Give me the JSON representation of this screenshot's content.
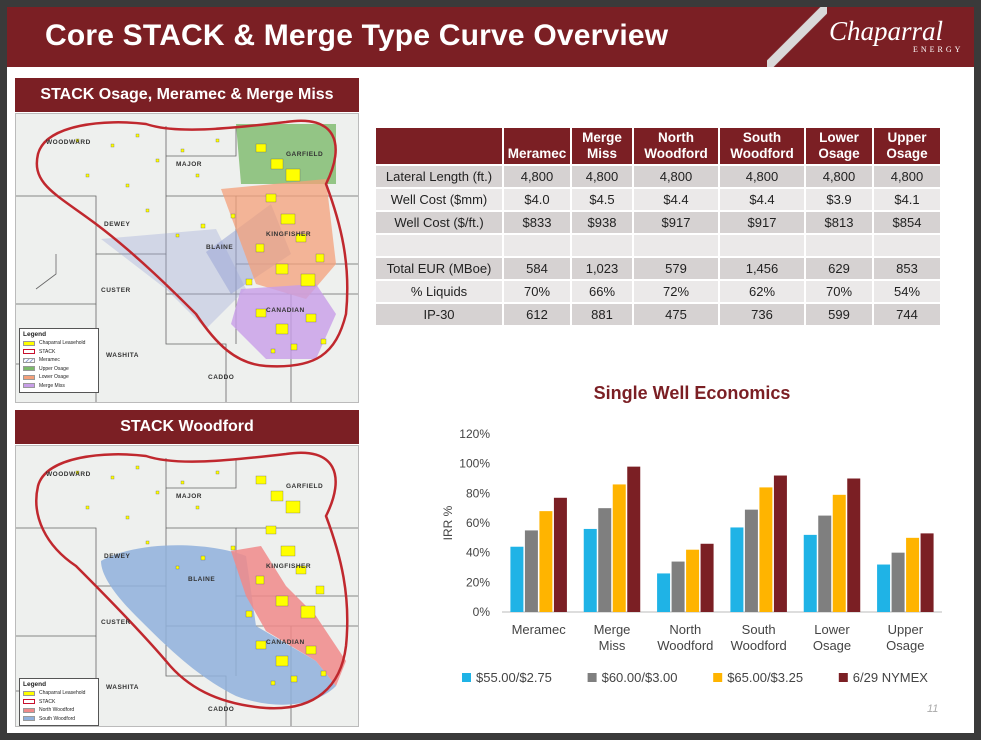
{
  "header": {
    "title": "Core STACK & Merge Type Curve Overview",
    "logo_main": "Chaparral",
    "logo_sub": "ENERGY"
  },
  "map_top": {
    "title": "STACK Osage, Meramec & Merge Miss",
    "counties": [
      "WOODWARD",
      "MAJOR",
      "GARFIELD",
      "DEWEY",
      "BLAINE",
      "KINGFISHER",
      "CUSTER",
      "CANADIAN",
      "WASHITA",
      "CADDO"
    ],
    "legend": {
      "title": "Legend",
      "items": [
        {
          "label": "Chaparral Leasehold",
          "color": "#ffff00"
        },
        {
          "label": "STACK",
          "color": "#c8102e"
        },
        {
          "label": "Meramec",
          "color": "#9aa6d6"
        },
        {
          "label": "Upper Osage",
          "color": "#7cba6a"
        },
        {
          "label": "Lower Osage",
          "color": "#f4a07a"
        },
        {
          "label": "Merge Miss",
          "color": "#c89ee8"
        }
      ]
    }
  },
  "map_bottom": {
    "title": "STACK Woodford",
    "counties": [
      "WOODWARD",
      "MAJOR",
      "GARFIELD",
      "DEWEY",
      "BLAINE",
      "KINGFISHER",
      "CUSTER",
      "CANADIAN",
      "WASHITA",
      "CADDO"
    ],
    "legend": {
      "title": "Legend",
      "items": [
        {
          "label": "Chaparral Leasehold",
          "color": "#ffff00"
        },
        {
          "label": "STACK",
          "color": "#c8102e"
        },
        {
          "label": "North Woodford",
          "color": "#f08a8a"
        },
        {
          "label": "South Woodford",
          "color": "#8fb0dc"
        }
      ]
    }
  },
  "table": {
    "columns": [
      "",
      "Meramec",
      "Merge Miss",
      "North Woodford",
      "South Woodford",
      "Lower Osage",
      "Upper Osage"
    ],
    "rows": [
      {
        "label": "Lateral Length (ft.)",
        "values": [
          "4,800",
          "4,800",
          "4,800",
          "4,800",
          "4,800",
          "4,800"
        ]
      },
      {
        "label": "Well Cost ($mm)",
        "values": [
          "$4.0",
          "$4.5",
          "$4.4",
          "$4.4",
          "$3.9",
          "$4.1"
        ]
      },
      {
        "label": "Well Cost ($/ft.)",
        "values": [
          "$833",
          "$938",
          "$917",
          "$917",
          "$813",
          "$854"
        ]
      },
      {
        "label": "",
        "values": [
          "",
          "",
          "",
          "",
          "",
          ""
        ]
      },
      {
        "label": "Total EUR (MBoe)",
        "values": [
          "584",
          "1,023",
          "579",
          "1,456",
          "629",
          "853"
        ]
      },
      {
        "label": "% Liquids",
        "values": [
          "70%",
          "66%",
          "72%",
          "62%",
          "70%",
          "54%"
        ]
      },
      {
        "label": "IP-30",
        "values": [
          "612",
          "881",
          "475",
          "736",
          "599",
          "744"
        ]
      }
    ]
  },
  "chart_data": {
    "type": "bar",
    "title": "Single Well Economics",
    "xlabel": "",
    "ylabel": "IRR %",
    "ylim": [
      0,
      120
    ],
    "yticks": [
      "0%",
      "20%",
      "40%",
      "60%",
      "80%",
      "100%",
      "120%"
    ],
    "categories": [
      "Meramec",
      "Merge Miss",
      "North Woodford",
      "South Woodford",
      "Lower Osage",
      "Upper Osage"
    ],
    "series": [
      {
        "name": "$55.00/$2.75",
        "color": "#1fb3e6",
        "values": [
          44,
          56,
          26,
          57,
          52,
          32
        ]
      },
      {
        "name": "$60.00/$3.00",
        "color": "#7f7f7f",
        "values": [
          55,
          70,
          34,
          69,
          65,
          40
        ]
      },
      {
        "name": "$65.00/$3.25",
        "color": "#ffb400",
        "values": [
          68,
          86,
          42,
          84,
          79,
          50
        ]
      },
      {
        "name": "6/29 NYMEX",
        "color": "#7b1f24",
        "values": [
          77,
          98,
          46,
          92,
          90,
          53
        ]
      }
    ],
    "legend_position": "bottom"
  },
  "page_number": "11"
}
